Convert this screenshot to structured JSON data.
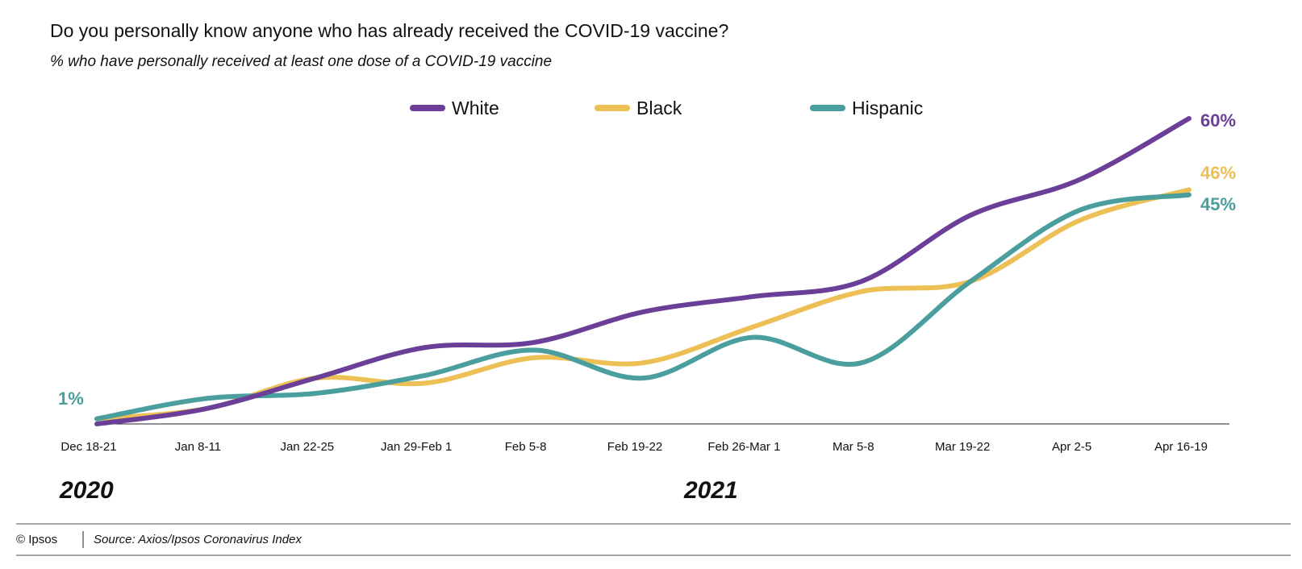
{
  "chart_data": {
    "type": "line",
    "title": "Do you personally know anyone who has already received the COVID-19 vaccine?",
    "subtitle": "% who have personally received at least one dose of a COVID-19 vaccine",
    "categories": [
      "Dec 18-21",
      "Jan 8-11",
      "Jan 22-25",
      "Jan 29-Feb 1",
      "Feb 5-8",
      "Feb 19-22",
      "Feb 26-Mar 1",
      "Mar 5-8",
      "Mar 19-22",
      "Apr 2-5",
      "Apr 16-19"
    ],
    "years": [
      "2020",
      "2021"
    ],
    "ylim": [
      0,
      62
    ],
    "grid": false,
    "legend_position": "top-center",
    "series": [
      {
        "name": "White",
        "color": "#6b3f98",
        "values": [
          0,
          3,
          9,
          15,
          16,
          22,
          25,
          28,
          41,
          48,
          60
        ],
        "end_label": "60%"
      },
      {
        "name": "Black",
        "color": "#ecc055",
        "values": [
          1,
          3,
          9,
          8,
          13,
          12,
          19,
          26,
          28,
          40,
          46
        ],
        "end_label": "46%"
      },
      {
        "name": "Hispanic",
        "color": "#4a9e9e",
        "values": [
          1,
          5,
          6,
          9.5,
          14.5,
          9,
          17,
          12,
          28,
          42,
          45
        ],
        "start_label": "1%",
        "end_label": "45%"
      }
    ]
  },
  "footer": {
    "copyright": "© Ipsos",
    "source": "Source: Axios/Ipsos Coronavirus Index"
  }
}
